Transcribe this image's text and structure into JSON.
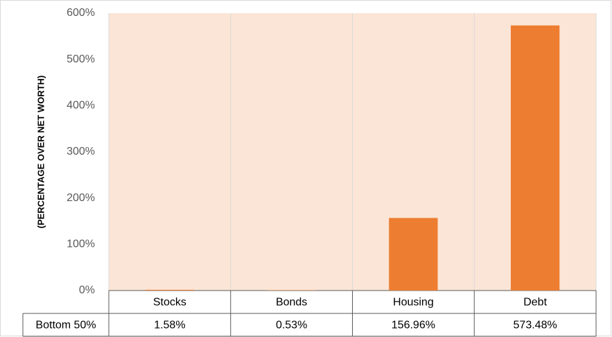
{
  "chart_data": {
    "type": "bar",
    "y_axis_label": "(PERCENTAGE OVER NET WORTH)",
    "categories": [
      "Stocks",
      "Bonds",
      "Housing",
      "Debt"
    ],
    "series": [
      {
        "name": "Bottom 50%",
        "color": "#ed7d31",
        "values": [
          1.58,
          0.53,
          156.96,
          573.48
        ],
        "value_labels": [
          "1.58%",
          "0.53%",
          "156.96%",
          "573.48%"
        ]
      }
    ],
    "ylim": [
      0,
      600
    ],
    "yticks": [
      {
        "value": 0,
        "label": "0%"
      },
      {
        "value": 100,
        "label": "100%"
      },
      {
        "value": 200,
        "label": "200%"
      },
      {
        "value": 300,
        "label": "300%"
      },
      {
        "value": 400,
        "label": "400%"
      },
      {
        "value": 500,
        "label": "500%"
      },
      {
        "value": 600,
        "label": "600%"
      }
    ],
    "plot_background": "#fbe5d6"
  }
}
